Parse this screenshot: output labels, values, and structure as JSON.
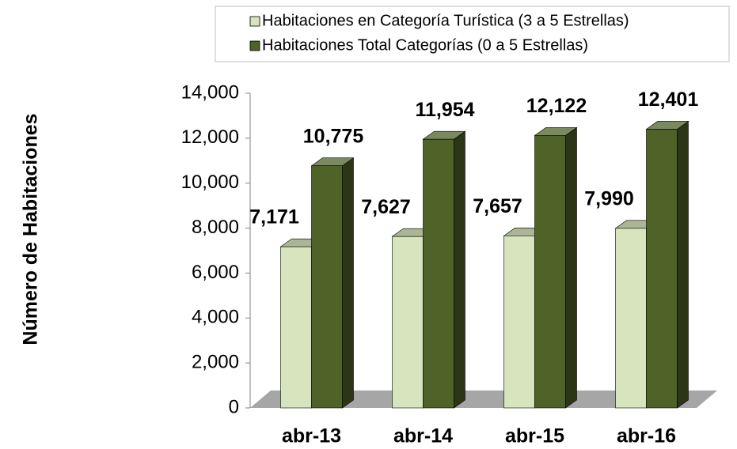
{
  "chart_data": {
    "type": "bar3d",
    "y_label": "Número de Habitaciones",
    "categories": [
      "abr-13",
      "abr-14",
      "abr-15",
      "abr-16"
    ],
    "series": [
      {
        "name": "Habitaciones en Categoría Turística (3 a 5 Estrellas)",
        "color": "#d7e4bd",
        "values": [
          7171,
          7627,
          7657,
          7990
        ],
        "value_labels": [
          "7,171",
          "7,627",
          "7,657",
          "7,990"
        ]
      },
      {
        "name": "Habitaciones Total Categorías (0 a 5 Estrellas)",
        "color": "#4f6228",
        "values": [
          10775,
          11954,
          12122,
          12401
        ],
        "value_labels": [
          "10,775",
          "11,954",
          "12,122",
          "12,401"
        ]
      }
    ],
    "ylim": [
      0,
      14000
    ],
    "yticks": [
      0,
      {
        "value": 2000,
        "label": "2,000"
      },
      {
        "value": 4000,
        "label": "4,000"
      },
      {
        "value": 6000,
        "label": "6,000"
      },
      {
        "value": 8000,
        "label": "8,000"
      },
      {
        "value": 10000,
        "label": "10,000"
      },
      {
        "value": 12000,
        "label": "12,000"
      },
      {
        "value": 14000,
        "label": "14,000"
      }
    ],
    "legend": "top-right"
  }
}
